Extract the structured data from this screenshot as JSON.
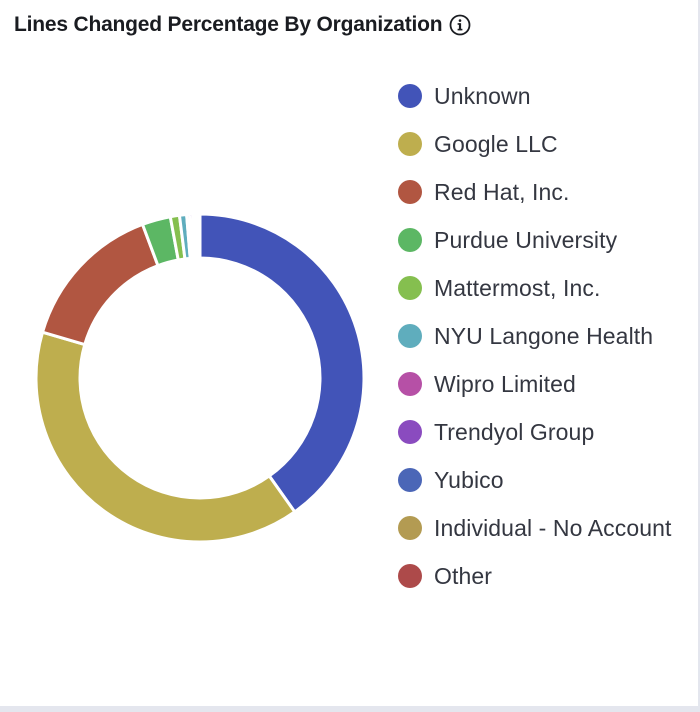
{
  "panel": {
    "title": "Lines Changed Percentage By Organization",
    "info_icon": "info-circle-icon"
  },
  "chart_data": {
    "type": "pie",
    "donut": true,
    "legend_position": "right",
    "start_angle_deg": 0,
    "direction": "clockwise",
    "slice_gap_color": "#ffffff",
    "slices": [
      {
        "label": "Unknown",
        "value": 40.2,
        "color": "#4254b8"
      },
      {
        "label": "Google LLC",
        "value": 39.3,
        "color": "#beae4e"
      },
      {
        "label": "Red Hat, Inc.",
        "value": 14.8,
        "color": "#b15641"
      },
      {
        "label": "Purdue University",
        "value": 2.8,
        "color": "#5cb764"
      },
      {
        "label": "Mattermost, Inc.",
        "value": 0.9,
        "color": "#85bf4f"
      },
      {
        "label": "NYU Langone Health",
        "value": 0.7,
        "color": "#5fadbd"
      },
      {
        "label": "Wipro Limited",
        "value": 0.3,
        "color": "#b650a6"
      },
      {
        "label": "Trendyol Group",
        "value": 0.3,
        "color": "#8a4bbf"
      },
      {
        "label": "Yubico",
        "value": 0.25,
        "color": "#4b66b7"
      },
      {
        "label": "Individual - No Account",
        "value": 0.2,
        "color": "#b39b52"
      },
      {
        "label": "Other",
        "value": 0.25,
        "color": "#ad4a4a"
      }
    ]
  },
  "legend": {
    "items": [
      {
        "label": "Unknown",
        "color": "#4254b8"
      },
      {
        "label": "Google LLC",
        "color": "#beae4e"
      },
      {
        "label": "Red Hat, Inc.",
        "color": "#b15641"
      },
      {
        "label": "Purdue University",
        "color": "#5cb764"
      },
      {
        "label": "Mattermost, Inc.",
        "color": "#85bf4f"
      },
      {
        "label": "NYU Langone Health",
        "color": "#5fadbd"
      },
      {
        "label": "Wipro Limited",
        "color": "#b650a6"
      },
      {
        "label": "Trendyol Group",
        "color": "#8a4bbf"
      },
      {
        "label": "Yubico",
        "color": "#4b66b7"
      },
      {
        "label": "Individual - No Account",
        "color": "#b39b52"
      },
      {
        "label": "Other",
        "color": "#ad4a4a"
      }
    ]
  }
}
